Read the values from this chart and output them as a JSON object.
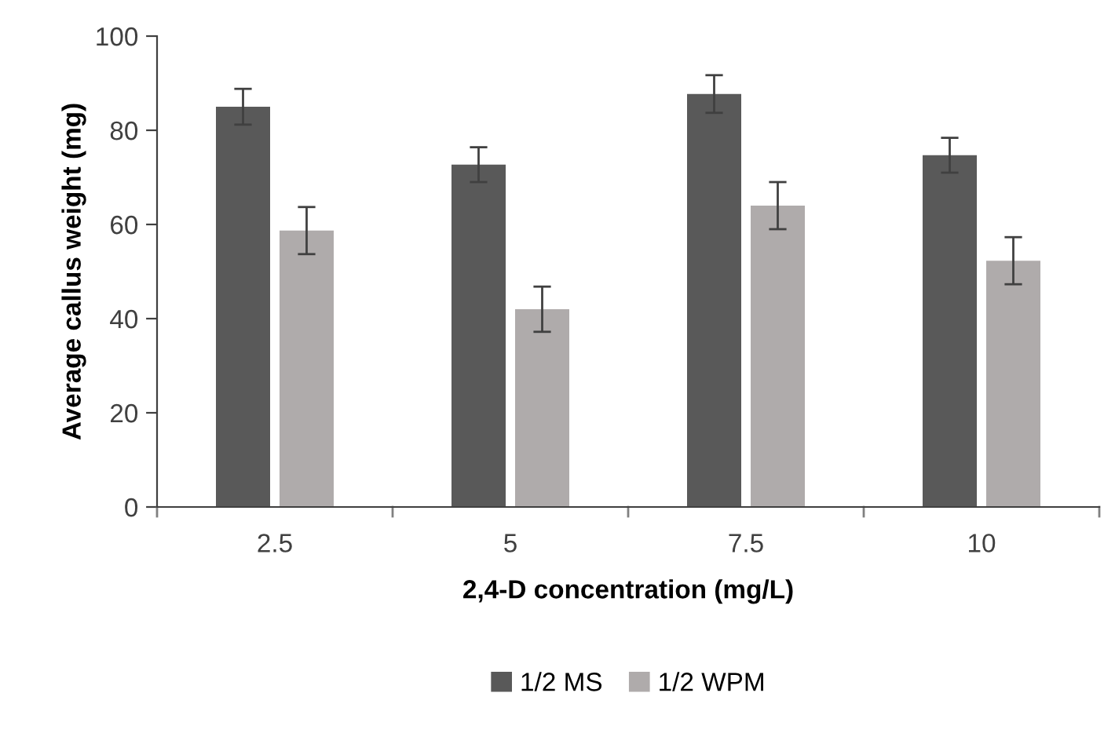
{
  "chart_data": {
    "type": "bar",
    "xlabel": "2,4-D concentration (mg/L)",
    "ylabel": "Average callus weight (mg)",
    "categories": [
      "2.5",
      "5",
      "7.5",
      "10"
    ],
    "series": [
      {
        "name": "1/2 MS",
        "color": "#595959",
        "values": [
          85,
          72.7,
          87.7,
          74.7
        ],
        "errors": [
          3.8,
          3.7,
          4,
          3.7
        ]
      },
      {
        "name": "1/2 WPM",
        "color": "#afabab",
        "values": [
          58.7,
          42,
          64,
          52.3
        ],
        "errors": [
          5,
          4.8,
          5,
          5
        ]
      }
    ],
    "ylim": [
      0,
      100
    ],
    "yticks": [
      0,
      20,
      40,
      60,
      80,
      100
    ],
    "grid": false,
    "legend": "bottom"
  }
}
